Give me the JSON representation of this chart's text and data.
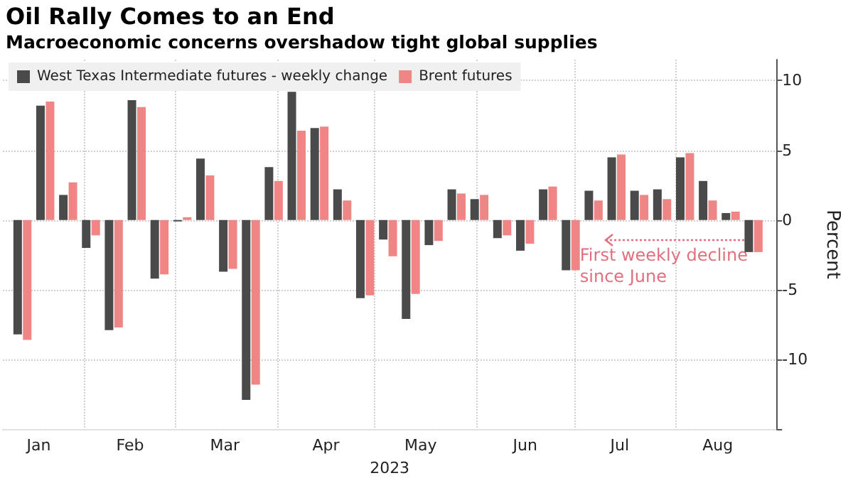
{
  "chart_data": {
    "type": "bar",
    "title": "Oil Rally Comes to an End",
    "subtitle": "Macroeconomic concerns overshadow tight global supplies",
    "x": [
      "2023-01-13",
      "2023-01-20",
      "2023-01-27",
      "2023-02-03",
      "2023-02-10",
      "2023-02-17",
      "2023-02-24",
      "2023-03-03",
      "2023-03-10",
      "2023-03-17",
      "2023-03-24",
      "2023-03-31",
      "2023-04-07",
      "2023-04-14",
      "2023-04-21",
      "2023-04-28",
      "2023-05-05",
      "2023-05-12",
      "2023-05-19",
      "2023-05-26",
      "2023-06-02",
      "2023-06-09",
      "2023-06-16",
      "2023-06-23",
      "2023-06-30",
      "2023-07-07",
      "2023-07-14",
      "2023-07-21",
      "2023-07-28",
      "2023-08-04",
      "2023-08-11",
      "2023-08-18",
      "2023-08-25"
    ],
    "series": [
      {
        "name": "West Texas Intermediate futures - weekly change",
        "color": "#4a4a4a",
        "values": [
          -8.2,
          8.2,
          1.8,
          -2.0,
          -7.9,
          8.6,
          -4.2,
          -0.1,
          4.4,
          -3.7,
          -12.9,
          3.8,
          9.2,
          6.6,
          2.2,
          -5.6,
          -1.4,
          -7.1,
          -1.8,
          2.2,
          1.5,
          -1.3,
          -2.2,
          2.2,
          -3.6,
          2.1,
          4.5,
          2.1,
          2.2,
          4.5,
          2.8,
          0.5,
          -2.3
        ]
      },
      {
        "name": "Brent futures",
        "color": "#ef8585",
        "values": [
          -8.6,
          8.5,
          2.7,
          -1.1,
          -7.7,
          8.1,
          -3.9,
          0.2,
          3.2,
          -3.5,
          -11.8,
          2.8,
          6.4,
          6.7,
          1.4,
          -5.4,
          -2.6,
          -5.3,
          -1.5,
          1.9,
          1.8,
          -1.1,
          -1.7,
          2.4,
          -3.6,
          1.4,
          4.7,
          1.8,
          1.5,
          4.8,
          1.4,
          0.6,
          -2.3
        ]
      }
    ],
    "xlim": [
      "2023-01-07",
      "2023-09-01"
    ],
    "xticks": [
      {
        "value": "2023-02-01",
        "label": null
      },
      {
        "value": "2023-03-01",
        "label": null
      },
      {
        "value": "2023-04-01",
        "label": null
      },
      {
        "value": "2023-05-01",
        "label": null
      },
      {
        "value": "2023-06-01",
        "label": null
      },
      {
        "value": "2023-07-01",
        "label": null
      },
      {
        "value": "2023-08-01",
        "label": null
      },
      {
        "value": "2023-01-18",
        "label": "Jan"
      },
      {
        "value": "2023-02-15",
        "label": "Feb"
      },
      {
        "value": "2023-03-16",
        "label": "Mar"
      },
      {
        "value": "2023-04-16",
        "label": "Apr"
      },
      {
        "value": "2023-05-15",
        "label": "May"
      },
      {
        "value": "2023-06-16",
        "label": "Jun"
      },
      {
        "value": "2023-07-15",
        "label": "Jul"
      },
      {
        "value": "2023-08-14",
        "label": "Aug"
      }
    ],
    "xlabel": "2023",
    "ylabel": "Percent",
    "ylim": [
      -15,
      11.5
    ],
    "yticks": [
      {
        "value": -15,
        "label": null
      },
      -10,
      -5,
      0,
      5,
      10
    ],
    "grid": true,
    "legend": "top left",
    "annotations": [
      "First weekly decline\nsince June"
    ]
  }
}
